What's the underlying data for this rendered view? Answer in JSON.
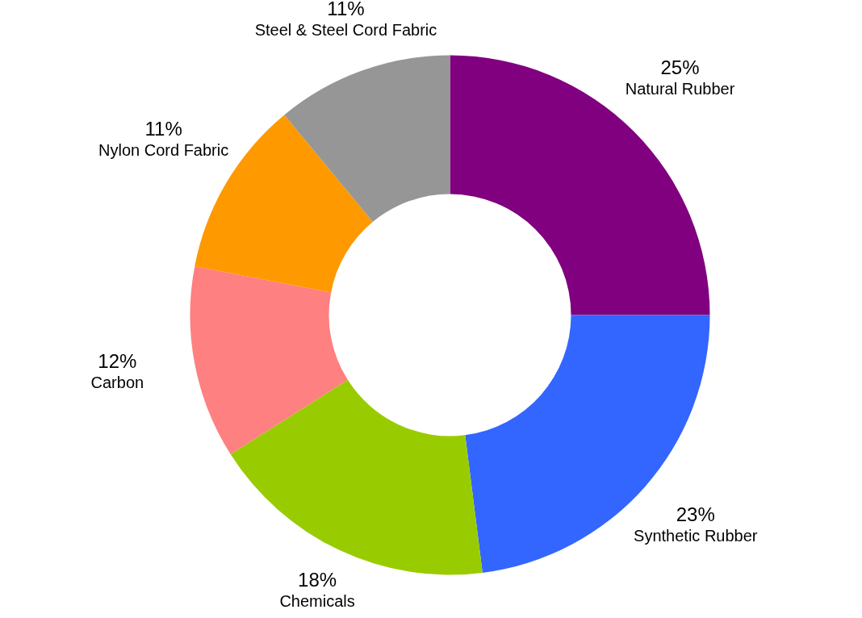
{
  "chart_data": {
    "type": "donut",
    "categories": [
      "Natural Rubber",
      "Synthetic Rubber",
      "Chemicals",
      "Carbon",
      "Nylon Cord Fabric",
      "Steel & Steel Cord Fabric"
    ],
    "values": [
      25,
      23,
      18,
      12,
      11,
      11
    ],
    "colors": [
      "#800080",
      "#3366ff",
      "#99cc00",
      "#ff8080",
      "#ff9900",
      "#969696"
    ],
    "value_labels": [
      "25%",
      "23%",
      "18%",
      "12%",
      "11%",
      "11%"
    ]
  }
}
